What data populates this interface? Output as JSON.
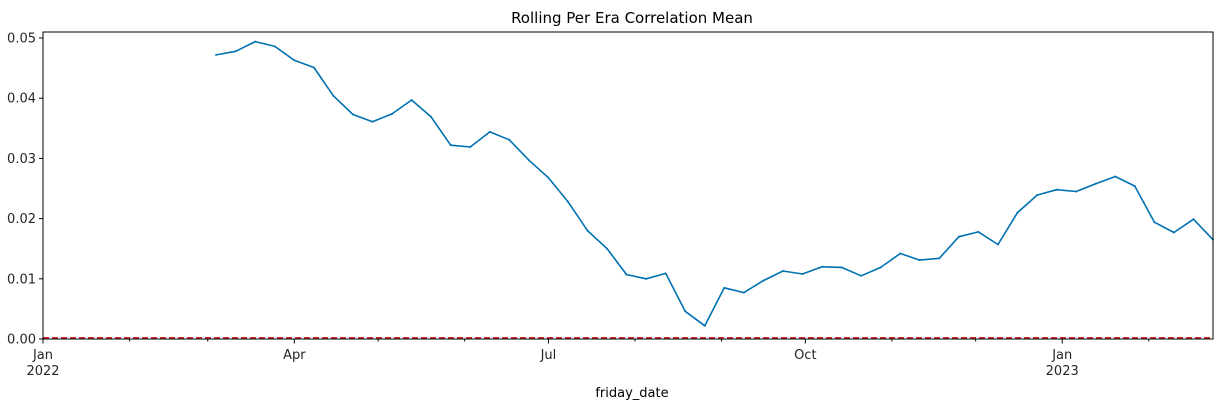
{
  "chart_data": {
    "type": "line",
    "title": "Rolling Per Era Correlation Mean",
    "xlabel": "friday_date",
    "ylabel": "",
    "x_range": [
      "2022-01-01",
      "2023-02-24"
    ],
    "ylim": [
      0,
      0.051
    ],
    "y_ticks": [
      0.0,
      0.01,
      0.02,
      0.03,
      0.04,
      0.05
    ],
    "y_tick_labels": [
      "0.00",
      "0.01",
      "0.02",
      "0.03",
      "0.04",
      "0.05"
    ],
    "x_ticks": [
      {
        "date": "2022-01-01",
        "label": "Jan",
        "label2": "2022"
      },
      {
        "date": "2022-04-01",
        "label": "Apr",
        "label2": ""
      },
      {
        "date": "2022-07-01",
        "label": "Jul",
        "label2": ""
      },
      {
        "date": "2022-10-01",
        "label": "Oct",
        "label2": ""
      },
      {
        "date": "2023-01-01",
        "label": "Jan",
        "label2": "2023"
      }
    ],
    "x_minor_ticks": [
      "2022-02-01",
      "2022-03-01",
      "2022-05-01",
      "2022-06-01",
      "2022-08-01",
      "2022-09-01",
      "2022-11-01",
      "2022-12-01",
      "2023-02-01"
    ],
    "grid": false,
    "reference_line": {
      "y": 0,
      "color": "#d62728",
      "style": "dashed"
    },
    "series": [
      {
        "color": "#0072b2",
        "x": [
          "2022-03-04",
          "2022-03-11",
          "2022-03-18",
          "2022-03-25",
          "2022-04-01",
          "2022-04-08",
          "2022-04-15",
          "2022-04-22",
          "2022-04-29",
          "2022-05-06",
          "2022-05-13",
          "2022-05-20",
          "2022-05-27",
          "2022-06-03",
          "2022-06-10",
          "2022-06-17",
          "2022-06-24",
          "2022-07-01",
          "2022-07-08",
          "2022-07-15",
          "2022-07-22",
          "2022-07-29",
          "2022-08-05",
          "2022-08-12",
          "2022-08-19",
          "2022-08-26",
          "2022-09-02",
          "2022-09-09",
          "2022-09-16",
          "2022-09-23",
          "2022-09-30",
          "2022-10-07",
          "2022-10-14",
          "2022-10-21",
          "2022-10-28",
          "2022-11-04",
          "2022-11-11",
          "2022-11-18",
          "2022-11-25",
          "2022-12-02",
          "2022-12-09",
          "2022-12-16",
          "2022-12-23",
          "2022-12-30",
          "2023-01-06",
          "2023-01-13",
          "2023-01-20",
          "2023-01-27",
          "2023-02-03",
          "2023-02-10",
          "2023-02-17",
          "2023-02-24"
        ],
        "y": [
          0.0472,
          0.0478,
          0.0494,
          0.0486,
          0.0463,
          0.0451,
          0.0404,
          0.0373,
          0.0361,
          0.0374,
          0.0397,
          0.0369,
          0.0322,
          0.0319,
          0.0344,
          0.0331,
          0.0297,
          0.0268,
          0.0228,
          0.018,
          0.015,
          0.0107,
          0.01,
          0.0109,
          0.0046,
          0.0022,
          0.0085,
          0.0077,
          0.0097,
          0.0113,
          0.0108,
          0.012,
          0.0119,
          0.0105,
          0.0119,
          0.0142,
          0.0131,
          0.0134,
          0.017,
          0.0178,
          0.0157,
          0.021,
          0.0239,
          0.0248,
          0.0245,
          0.0258,
          0.027,
          0.0254,
          0.0194,
          0.0177,
          0.0199,
          0.0165
        ]
      }
    ]
  }
}
